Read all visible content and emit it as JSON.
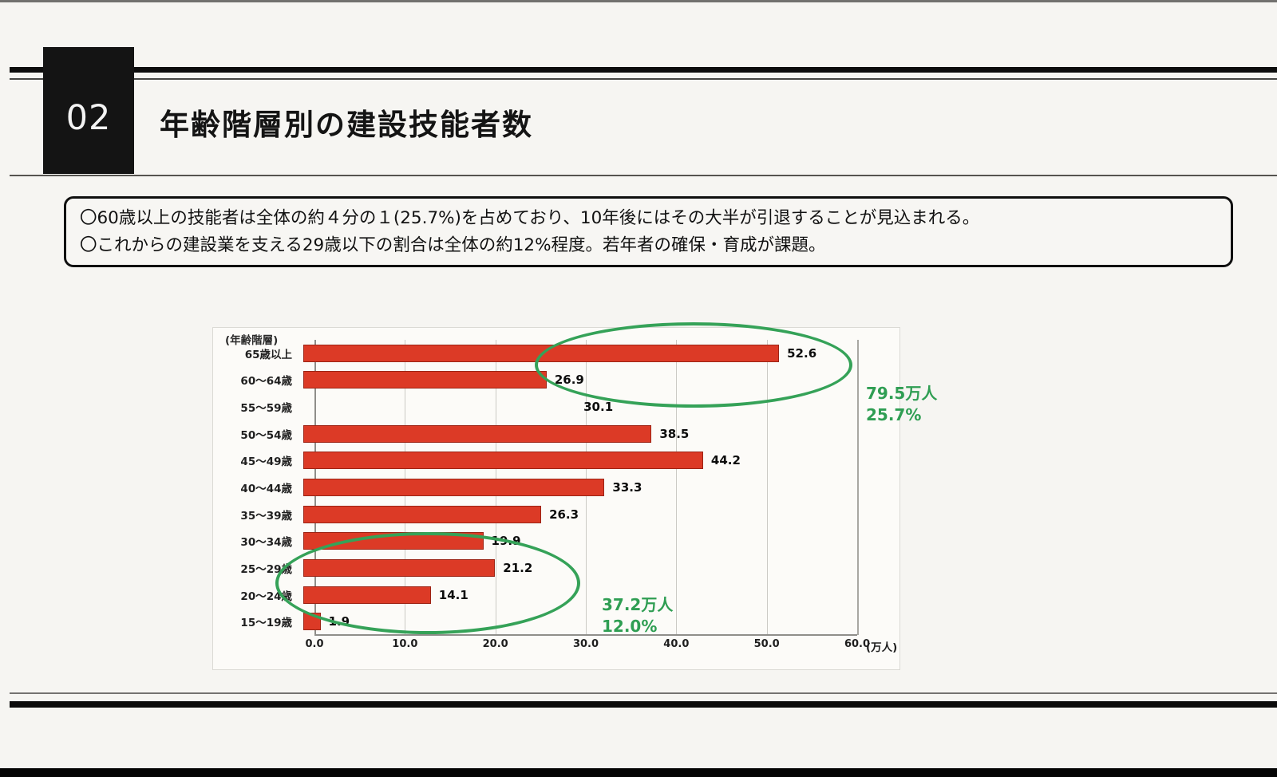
{
  "slide": {
    "section_number": "02",
    "title": "年齢階層別の建設技能者数",
    "callout_lines": [
      "〇60歳以上の技能者は全体の約４分の１(25.7%)を占めており、10年後にはその大半が引退することが見込まれる。",
      "〇これからの建設業を支える29歳以下の割合は全体の約12%程度。若年者の確保・育成が課題。"
    ]
  },
  "chart_data": {
    "type": "bar",
    "orientation": "horizontal",
    "axis_title": "(年齢階層)",
    "unit_label": "(万人)",
    "xlim": [
      0,
      60
    ],
    "x_ticks": [
      "0.0",
      "10.0",
      "20.0",
      "30.0",
      "40.0",
      "50.0",
      "60.0"
    ],
    "grid": true,
    "bar_color": "#dc3a26",
    "highlight_color": "#35a258",
    "rows": [
      {
        "label": "65歳以上",
        "value": 52.6,
        "bar_visible": true
      },
      {
        "label": "60〜64歳",
        "value": 26.9,
        "bar_visible": true
      },
      {
        "label": "55〜59歳",
        "value": 30.1,
        "bar_visible": false
      },
      {
        "label": "50〜54歳",
        "value": 38.5,
        "bar_visible": true
      },
      {
        "label": "45〜49歳",
        "value": 44.2,
        "bar_visible": true
      },
      {
        "label": "40〜44歳",
        "value": 33.3,
        "bar_visible": true
      },
      {
        "label": "35〜39歳",
        "value": 26.3,
        "bar_visible": true
      },
      {
        "label": "30〜34歳",
        "value": 19.9,
        "bar_visible": true
      },
      {
        "label": "25〜29歳",
        "value": 21.2,
        "bar_visible": true
      },
      {
        "label": "20〜24歳",
        "value": 14.1,
        "bar_visible": true
      },
      {
        "label": "15〜19歳",
        "value": 1.9,
        "bar_visible": true
      }
    ],
    "annotation_senior": {
      "line1": "79.5万人",
      "line2": "25.7%"
    },
    "annotation_young": {
      "line1": "37.2万人",
      "line2": "12.0%"
    }
  }
}
